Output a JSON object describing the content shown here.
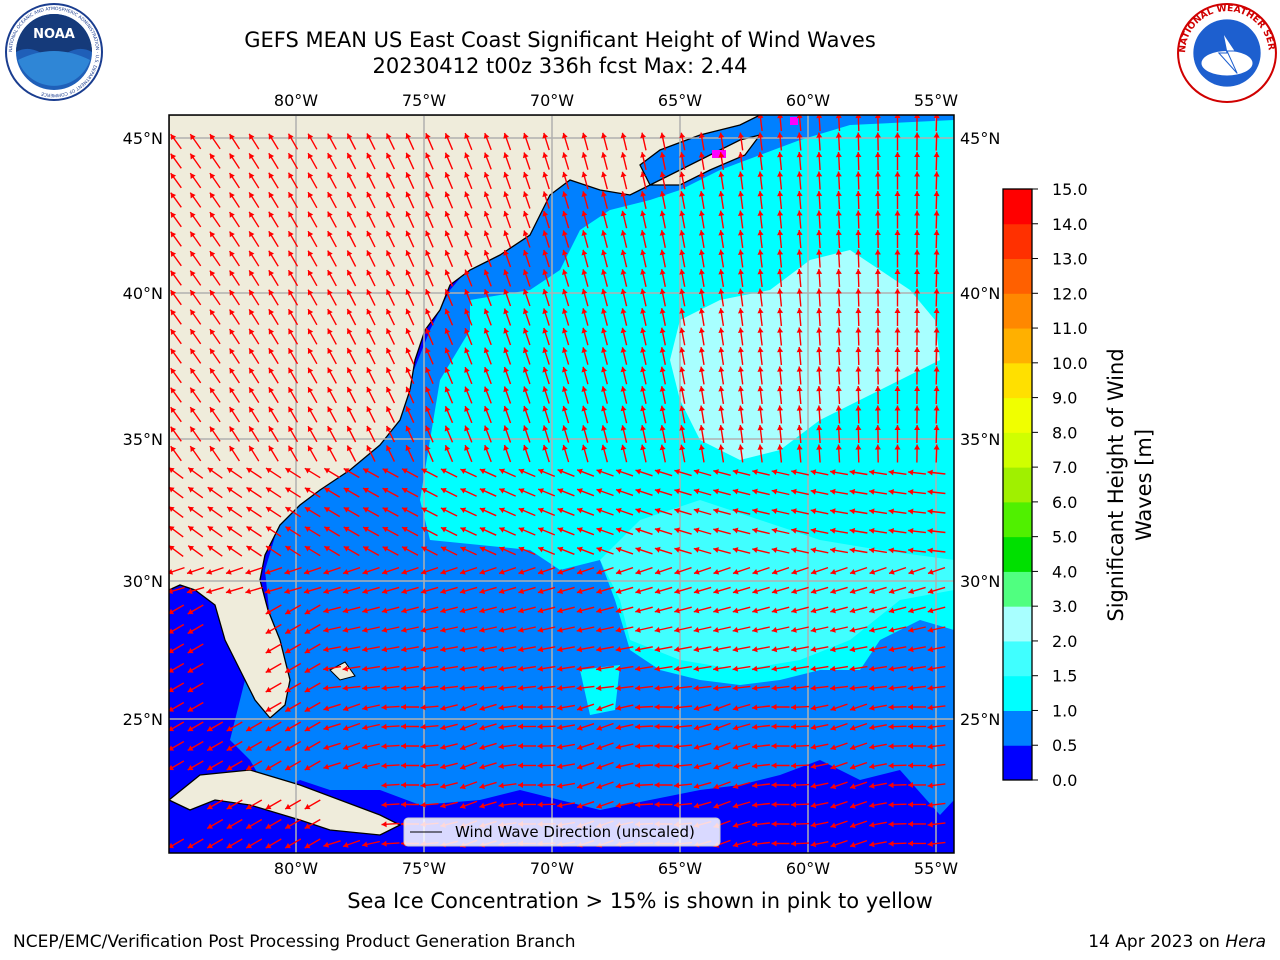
{
  "header": {
    "title_line1": "GEFS MEAN US East Coast Significant Height of Wind Waves",
    "title_line2": "20230412 t00z 336h fcst   Max: 2.44"
  },
  "logos": {
    "left": {
      "icon": "noaa-logo-icon",
      "text": "NOAA",
      "ring_text": "NATIONAL OCEANIC AND ATMOSPHERIC ADMINISTRATION · U.S. DEPARTMENT OF COMMERCE"
    },
    "right": {
      "icon": "nws-logo-icon",
      "ring_text": "NATIONAL WEATHER SERVICE"
    }
  },
  "map": {
    "lon_labels": [
      "80°W",
      "75°W",
      "70°W",
      "65°W",
      "60°W",
      "55°W"
    ],
    "lat_labels": [
      "45°N",
      "40°N",
      "35°N",
      "30°N",
      "25°N"
    ],
    "legend_label": "Wind Wave Direction (unscaled)",
    "colors": {
      "land": "#efecdb",
      "grid": "#b0b0b0",
      "arrow": "#ff0000",
      "ice": "#ff00ff"
    }
  },
  "colorbar": {
    "label_line1": "Significant Height of Wind",
    "label_line2": "Waves [m]",
    "ticks": [
      "0.0",
      "0.5",
      "1.0",
      "1.5",
      "2.0",
      "3.0",
      "4.0",
      "5.0",
      "6.0",
      "7.0",
      "8.0",
      "9.0",
      "10.0",
      "11.0",
      "12.0",
      "13.0",
      "14.0",
      "15.0"
    ],
    "colors": [
      "#0000ff",
      "#0080ff",
      "#00ffff",
      "#40ffff",
      "#a8ffff",
      "#50ff80",
      "#00e000",
      "#50f000",
      "#a0f000",
      "#d0ff00",
      "#f0ff00",
      "#ffe000",
      "#ffb000",
      "#ff8800",
      "#ff6000",
      "#ff3000",
      "#ff0000"
    ]
  },
  "footer": {
    "ice_note": "Sea Ice Concentration > 15% is shown in pink to yellow",
    "left": "NCEP/EMC/Verification Post Processing Product Generation Branch",
    "right_date": "14 Apr 2023 on ",
    "right_host": "Hera"
  }
}
